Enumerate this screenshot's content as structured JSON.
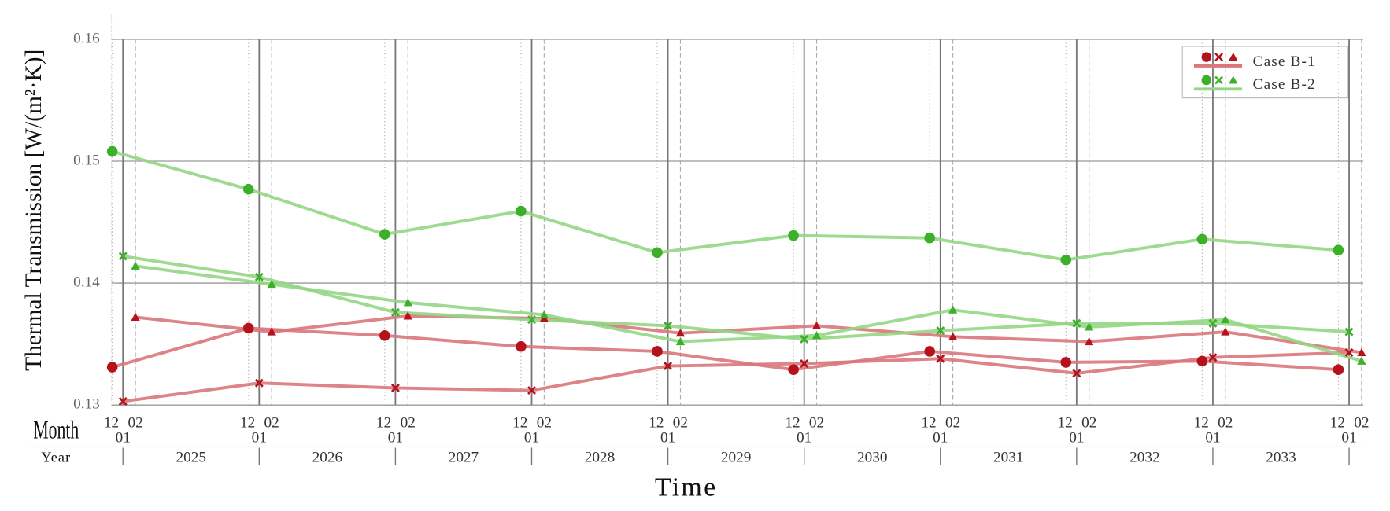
{
  "chart_data": {
    "type": "line",
    "y_label": "Thermal Transmission [W/(m²·K)]",
    "x_label": "Time",
    "month_row_label": "Month",
    "year_row_label": "Year",
    "month_ticks": [
      "12",
      "01",
      "02"
    ],
    "years": [
      2025,
      2026,
      2027,
      2028,
      2029,
      2030,
      2031,
      2032,
      2033
    ],
    "ylim": [
      0.13,
      0.16
    ],
    "yticks": [
      0.13,
      0.14,
      0.15,
      0.16
    ],
    "grid": true,
    "legend": "upper right",
    "series": [
      {
        "name": "Case B-1",
        "color": "#b5121b",
        "line_color": "#d9777c",
        "subseries": [
          {
            "marker": "circle",
            "month": "12",
            "values": [
              0.1331,
              0.1363,
              0.1357,
              0.1348,
              0.1344,
              0.1329,
              0.1344,
              0.1335,
              0.1336,
              0.1329
            ]
          },
          {
            "marker": "x",
            "month": "01",
            "values": [
              0.1303,
              0.1318,
              0.1314,
              0.1312,
              0.1332,
              0.1334,
              0.1338,
              0.1326,
              0.1339,
              0.1343
            ]
          },
          {
            "marker": "triangle",
            "month": "02",
            "values": [
              0.1372,
              0.136,
              0.1373,
              0.1371,
              0.1359,
              0.1365,
              0.1356,
              0.1352,
              0.136,
              0.1343
            ]
          }
        ]
      },
      {
        "name": "Case B-2",
        "color": "#3cb029",
        "line_color": "#93d684",
        "subseries": [
          {
            "marker": "circle",
            "month": "12",
            "values": [
              0.1508,
              0.1477,
              0.144,
              0.1459,
              0.1425,
              0.1439,
              0.1437,
              0.1419,
              0.1436,
              0.1427
            ]
          },
          {
            "marker": "x",
            "month": "01",
            "values": [
              0.1422,
              0.1405,
              0.1376,
              0.137,
              0.1365,
              0.1354,
              0.1361,
              0.1367,
              0.1367,
              0.136
            ]
          },
          {
            "marker": "triangle",
            "month": "02",
            "values": [
              0.1414,
              0.1399,
              0.1384,
              0.1374,
              0.1352,
              0.1357,
              0.1378,
              0.1364,
              0.137,
              0.1336
            ]
          }
        ]
      }
    ]
  }
}
